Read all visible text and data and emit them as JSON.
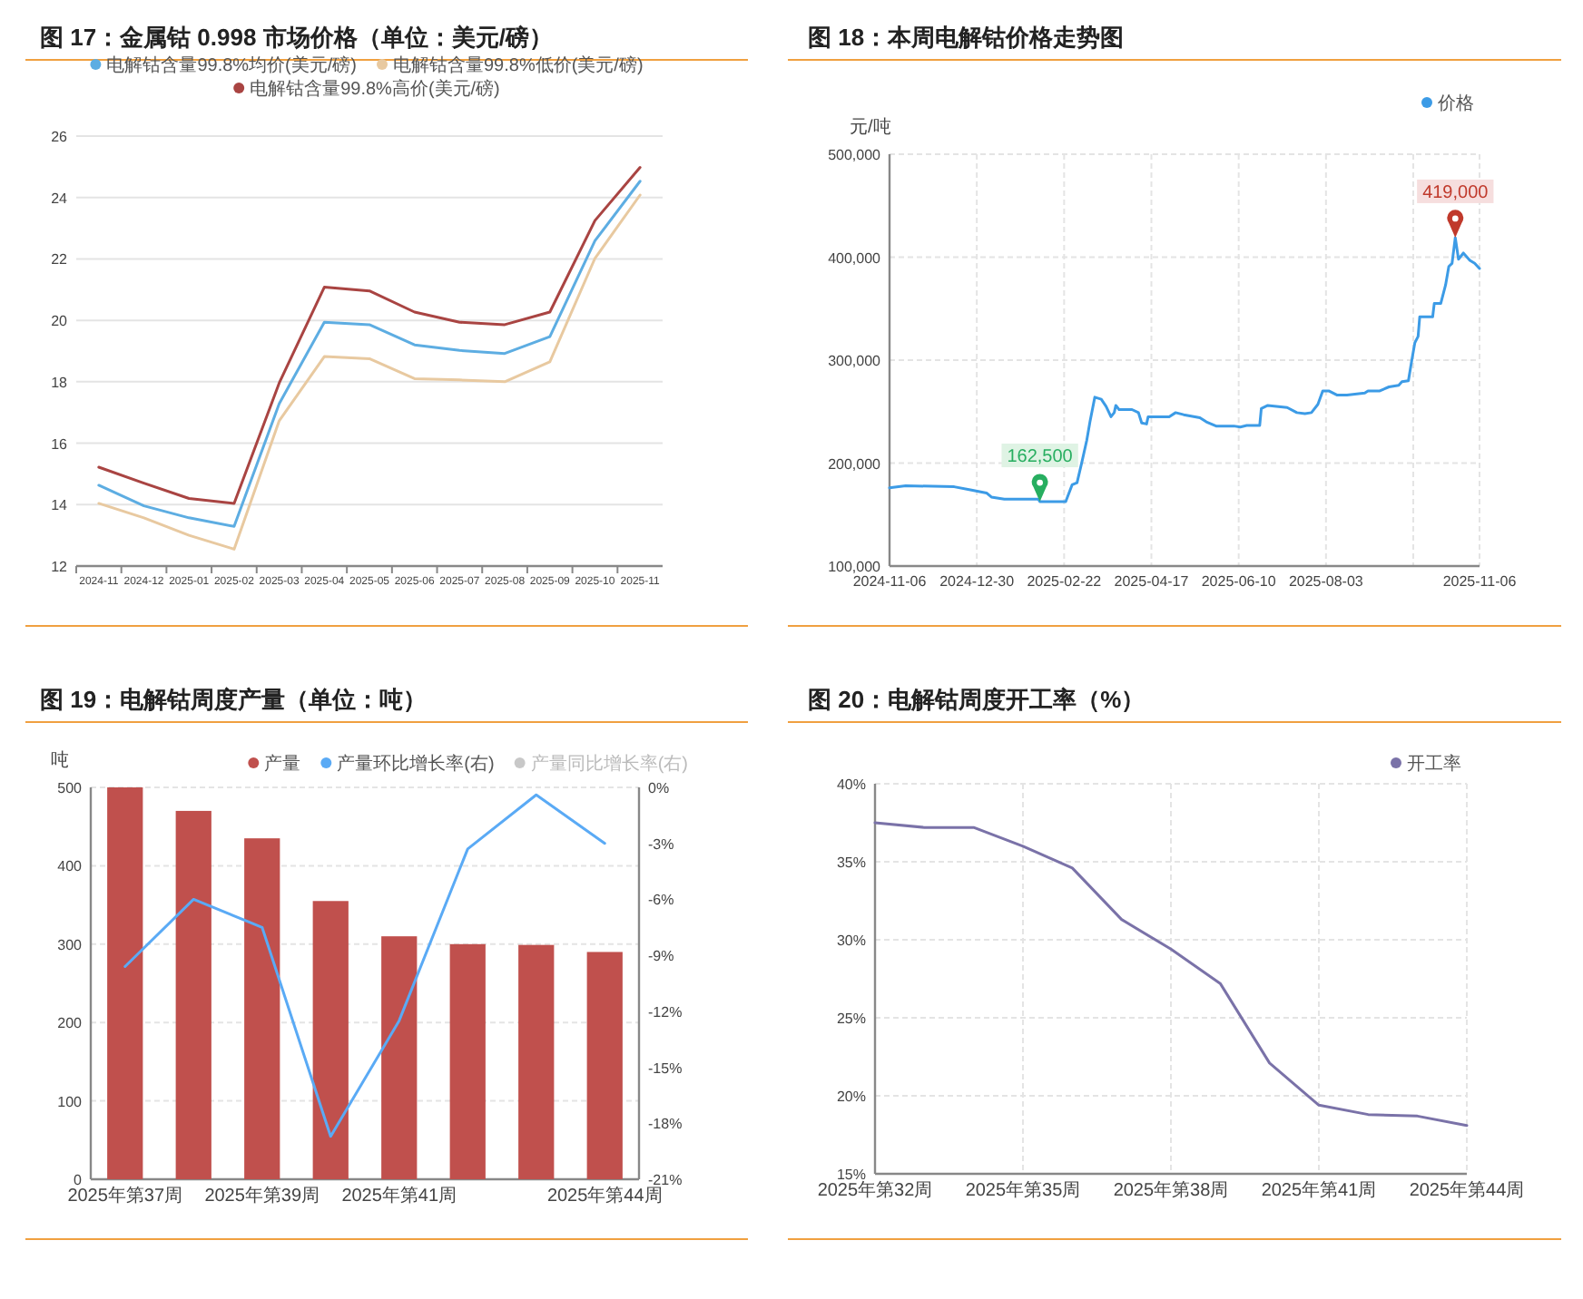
{
  "chart_data": [
    {
      "type": "line",
      "title": "图 17：金属钴 0.998 市场价格（单位：美元/磅）",
      "categories": [
        "2024-11",
        "2024-12",
        "2025-01",
        "2025-02",
        "2025-03",
        "2025-04",
        "2025-05",
        "2025-06",
        "2025-07",
        "2025-08",
        "2025-09",
        "2025-10",
        "2025-11"
      ],
      "ylim": [
        12,
        26
      ],
      "yticks": [
        12,
        14,
        16,
        18,
        20,
        22,
        24,
        26
      ],
      "grid": "y",
      "legend": "top",
      "series": [
        {
          "name": "电解钴含量99.8%均价(美元/磅)",
          "color": "#5dade2",
          "values": [
            14.63,
            13.96,
            13.57,
            13.29,
            17.29,
            19.94,
            19.86,
            19.2,
            19.02,
            18.92,
            19.47,
            22.59,
            24.53
          ]
        },
        {
          "name": "电解钴含量99.8%低价(美元/磅)",
          "color": "#e8c9a0",
          "values": [
            14.04,
            13.57,
            13.0,
            12.55,
            16.73,
            18.82,
            18.75,
            18.1,
            18.06,
            18.0,
            18.65,
            22.02,
            24.08
          ]
        },
        {
          "name": "电解钴含量99.8%高价(美元/磅)",
          "color": "#a94442",
          "values": [
            15.22,
            14.7,
            14.2,
            14.04,
            17.96,
            21.08,
            20.96,
            20.27,
            19.94,
            19.86,
            20.27,
            23.25,
            24.98
          ]
        }
      ]
    },
    {
      "type": "line",
      "title": "图 18：本周电解钴价格走势图",
      "ylabel": "元/吨",
      "xlim": [
        "2024-11-06",
        "2025-11-06"
      ],
      "xticks": [
        "2024-11-06",
        "2024-12-30",
        "2025-02-22",
        "2025-04-17",
        "2025-06-10",
        "2025-08-03",
        {
          "value": "2025-09-26",
          "label": null
        },
        "2025-11-06"
      ],
      "ylim": [
        100000,
        500000
      ],
      "yticks": [
        {
          "value": 100000,
          "label": "100,000"
        },
        {
          "value": 200000,
          "label": "200,000"
        },
        {
          "value": 300000,
          "label": "300,000"
        },
        {
          "value": 400000,
          "label": "400,000"
        },
        {
          "value": 500000,
          "label": "500,000"
        }
      ],
      "grid": true,
      "legend": "top right",
      "annotations": [
        {
          "text": "162,500",
          "x": "2025-02-07",
          "y": 162500
        },
        {
          "text": "419,000",
          "x": "2025-10-22",
          "y": 419000
        }
      ],
      "series": [
        {
          "name": "价格",
          "color": "#3c9be6",
          "x": [
            "2024-11-06",
            "2024-11-16",
            "2024-12-16",
            "2024-12-26",
            "2025-01-05",
            "2025-01-08",
            "2025-01-16",
            "2025-02-06",
            "2025-02-07",
            "2025-02-23",
            "2025-02-27",
            "2025-03-02",
            "2025-03-05",
            "2025-03-08",
            "2025-03-10",
            "2025-03-13",
            "2025-03-17",
            "2025-03-20",
            "2025-03-23",
            "2025-03-25",
            "2025-03-26",
            "2025-03-28",
            "2025-04-05",
            "2025-04-09",
            "2025-04-11",
            "2025-04-14",
            "2025-04-15",
            "2025-04-28",
            "2025-05-02",
            "2025-05-07",
            "2025-05-17",
            "2025-05-21",
            "2025-05-27",
            "2025-06-07",
            "2025-06-11",
            "2025-06-15",
            "2025-06-23",
            "2025-06-24",
            "2025-06-28",
            "2025-07-10",
            "2025-07-16",
            "2025-07-21",
            "2025-07-25",
            "2025-07-29",
            "2025-08-01",
            "2025-08-05",
            "2025-08-10",
            "2025-08-16",
            "2025-08-27",
            "2025-08-29",
            "2025-09-05",
            "2025-09-11",
            "2025-09-17",
            "2025-09-19",
            "2025-09-23",
            "2025-09-25",
            "2025-09-27",
            "2025-09-29",
            "2025-09-30",
            "2025-10-08",
            "2025-10-09",
            "2025-10-13",
            "2025-10-16",
            "2025-10-18",
            "2025-10-20",
            "2025-10-22",
            "2025-10-24",
            "2025-10-27",
            "2025-10-31",
            "2025-11-03",
            "2025-11-06"
          ],
          "values": [
            176000,
            178000,
            177000,
            174000,
            171000,
            167000,
            165000,
            165000,
            162500,
            162500,
            179000,
            181000,
            201000,
            222000,
            240000,
            264000,
            262000,
            255000,
            245000,
            249000,
            256000,
            252000,
            252000,
            249000,
            239000,
            238000,
            245000,
            245000,
            249000,
            247000,
            244000,
            240000,
            236000,
            236000,
            235000,
            236500,
            236500,
            253000,
            256000,
            254000,
            249000,
            248000,
            249000,
            257000,
            270000,
            270000,
            266000,
            266000,
            268000,
            270000,
            270000,
            274000,
            275500,
            279000,
            280000,
            299000,
            317000,
            323000,
            342000,
            342000,
            355000,
            355000,
            373000,
            391000,
            394000,
            419000,
            398000,
            404000,
            397000,
            394000,
            389000
          ]
        }
      ]
    },
    {
      "type": "bar",
      "title": "图 19：电解钴周度产量（单位：吨）",
      "ylabel": "吨",
      "categories": [
        "2025年第37周",
        null,
        "2025年第39周",
        null,
        "2025年第41周",
        null,
        null,
        "2025年第44周"
      ],
      "ylim": [
        0,
        500
      ],
      "yticks": [
        0,
        100,
        200,
        300,
        400,
        500
      ],
      "y2lim": [
        -21,
        0
      ],
      "y2ticks": [
        {
          "value": 0,
          "label": "0%"
        },
        {
          "value": -3,
          "label": "-3%"
        },
        {
          "value": -6,
          "label": "-6%"
        },
        {
          "value": -9,
          "label": "-9%"
        },
        {
          "value": -12,
          "label": "-12%"
        },
        {
          "value": -15,
          "label": "-15%"
        },
        {
          "value": -18,
          "label": "-18%"
        },
        {
          "value": -21,
          "label": "-21%"
        }
      ],
      "grid": "y",
      "legend": "top right",
      "series": [
        {
          "name": "产量",
          "color": "#c0504d",
          "values": [
            500,
            470,
            435,
            355,
            310,
            300,
            299,
            290
          ]
        },
        {
          "name": "产量环比增长率(右)",
          "type": "line",
          "axis": "y2",
          "color": "#5aaaf5",
          "values": [
            -9.6,
            -6.0,
            -7.5,
            -18.7,
            -12.5,
            -3.3,
            -0.4,
            -3.0
          ]
        },
        {
          "name": "产量同比增长率(右)",
          "type": "line",
          "axis": "y2",
          "color": "#c8c8c8",
          "values": [
            null,
            null,
            null,
            null,
            null,
            null,
            null,
            null
          ]
        }
      ]
    },
    {
      "type": "line",
      "title": "图 20：电解钴周度开工率（%）",
      "categories": [
        "2025年第32周",
        null,
        null,
        "2025年第35周",
        null,
        null,
        "2025年第38周",
        null,
        null,
        "2025年第41周",
        null,
        null,
        "2025年第44周"
      ],
      "ylim": [
        15,
        40
      ],
      "yticks": [
        {
          "value": 15,
          "label": "15%"
        },
        {
          "value": 20,
          "label": "20%"
        },
        {
          "value": 25,
          "label": "25%"
        },
        {
          "value": 30,
          "label": "30%"
        },
        {
          "value": 35,
          "label": "35%"
        },
        {
          "value": 40,
          "label": "40%"
        }
      ],
      "grid": true,
      "legend": "top right",
      "series": [
        {
          "name": "开工率",
          "color": "#7a72a8",
          "values": [
            37.5,
            37.2,
            37.2,
            36,
            34.6,
            31.3,
            29.4,
            27.2,
            22.1,
            19.4,
            18.8,
            18.7,
            18.1
          ]
        }
      ]
    }
  ]
}
